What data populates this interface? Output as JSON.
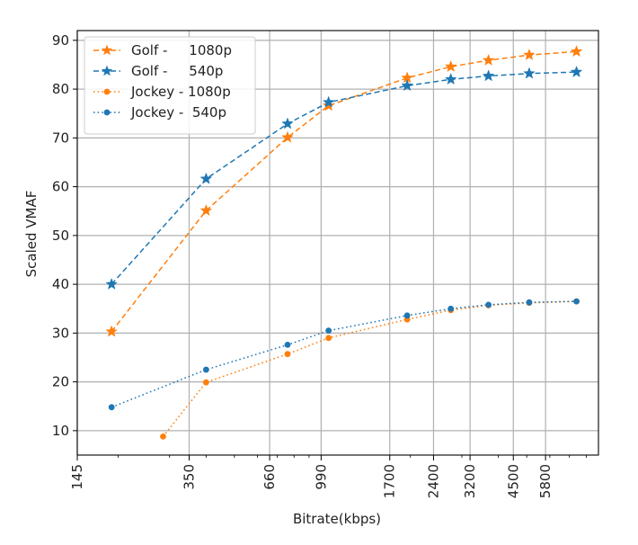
{
  "chart_data": {
    "type": "line",
    "title": "",
    "xlabel": "Bitrate(kbps)",
    "ylabel": "Scaled VMAF",
    "xscale": "log",
    "xlim": [
      145,
      8800
    ],
    "ylim": [
      5,
      92
    ],
    "grid": true,
    "legend_position": "top-left",
    "x_ticks": [
      145,
      350,
      660,
      990,
      1700,
      2400,
      3200,
      4500,
      5800
    ],
    "x_tick_labels": [
      "145",
      "350",
      "660",
      "990",
      "1700",
      "2400",
      "3200",
      "4500",
      "5800"
    ],
    "y_ticks": [
      10,
      20,
      30,
      40,
      50,
      60,
      70,
      80,
      90
    ],
    "y_tick_labels": [
      "10",
      "20",
      "30",
      "40",
      "50",
      "60",
      "70",
      "80",
      "90"
    ],
    "series": [
      {
        "name": "Golf -     1080p",
        "color": "#ff7f0e",
        "linestyle": "dashed",
        "marker": "star",
        "x": [
          190,
          400,
          760,
          1050,
          1950,
          2750,
          3700,
          5100,
          7400
        ],
        "y": [
          30.3,
          55.1,
          70.1,
          76.6,
          82.3,
          84.6,
          85.9,
          87.0,
          87.7
        ]
      },
      {
        "name": "Golf -     540p",
        "color": "#1f77b4",
        "linestyle": "dashed",
        "marker": "star",
        "x": [
          190,
          400,
          760,
          1050,
          1950,
          2750,
          3700,
          5100,
          7400
        ],
        "y": [
          40.0,
          61.6,
          72.9,
          77.3,
          80.7,
          82.0,
          82.7,
          83.2,
          83.5
        ]
      },
      {
        "name": "Jockey - 1080p",
        "color": "#ff7f0e",
        "linestyle": "dotted",
        "marker": "circle",
        "x": [
          285,
          400,
          760,
          1050,
          1950,
          2750,
          3700,
          5100,
          7400
        ],
        "y": [
          8.8,
          19.9,
          25.7,
          29.0,
          32.8,
          34.7,
          35.7,
          36.2,
          36.5
        ]
      },
      {
        "name": "Jockey -  540p",
        "color": "#1f77b4",
        "linestyle": "dotted",
        "marker": "circle",
        "x": [
          190,
          400,
          760,
          1050,
          1950,
          2750,
          3700,
          5100,
          7400
        ],
        "y": [
          14.8,
          22.5,
          27.6,
          30.5,
          33.6,
          35.0,
          35.8,
          36.3,
          36.5
        ]
      }
    ]
  }
}
